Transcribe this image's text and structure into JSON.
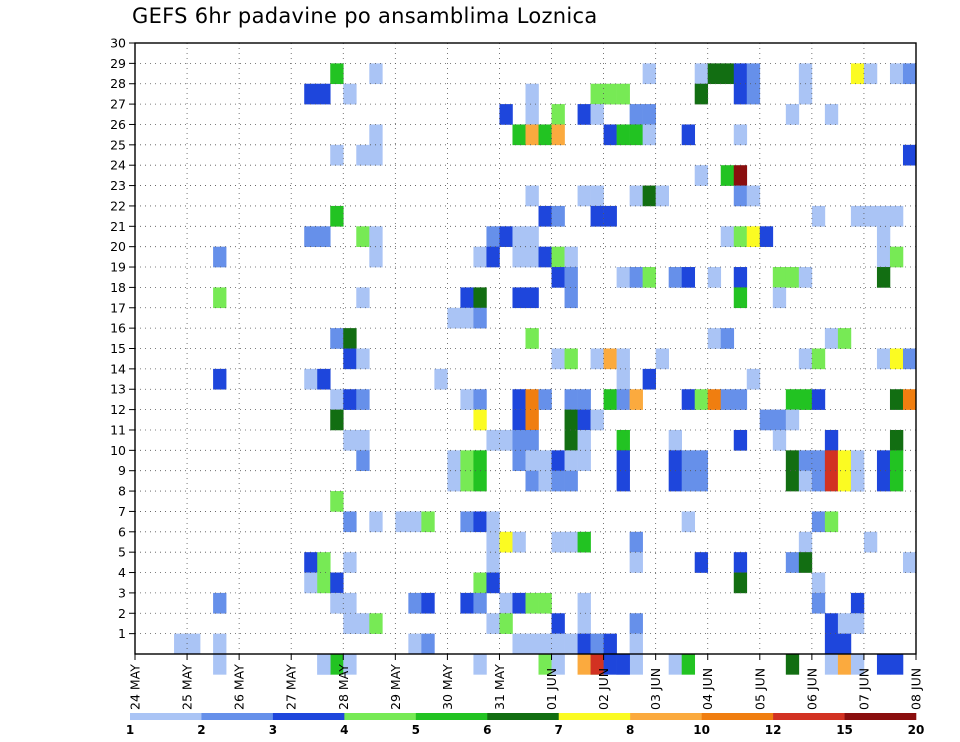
{
  "chart_data": {
    "type": "heatmap",
    "title": "GEFS 6hr padavine po ansamblima Loznica",
    "y_tick_labels": [
      "1",
      "2",
      "3",
      "4",
      "5",
      "6",
      "7",
      "8",
      "9",
      "10",
      "11",
      "12",
      "13",
      "14",
      "15",
      "16",
      "17",
      "18",
      "19",
      "20",
      "21",
      "22",
      "23",
      "24",
      "25",
      "26",
      "27",
      "28",
      "29",
      "30"
    ],
    "ylim": [
      0,
      30
    ],
    "x_tick_labels": [
      "24 MAY",
      "25 MAY",
      "26 MAY",
      "27 MAY",
      "28 MAY",
      "29 MAY",
      "30 MAY",
      "31 MAY",
      "01 JUN",
      "02 JUN",
      "03 JUN",
      "04 JUN",
      "05 JUN",
      "06 JUN",
      "07 JUN",
      "08 JUN"
    ],
    "xlim_steps": [
      0,
      60
    ],
    "grid": true,
    "colorbar": {
      "labels": [
        "1",
        "2",
        "3",
        "4",
        "5",
        "6",
        "7",
        "8",
        "10",
        "12",
        "15",
        "20"
      ],
      "colors": [
        "#aac4f5",
        "#6690ea",
        "#1e46dc",
        "#77ea55",
        "#22c322",
        "#126e12",
        "#fbfb22",
        "#fbaa3e",
        "#f07e10",
        "#d23222",
        "#8a0e0e"
      ]
    },
    "cells": [
      [
        0.5,
        6,
        29
      ],
      [
        2.5,
        3,
        26
      ],
      [
        3.5,
        3,
        26
      ],
      [
        3.5,
        3,
        33
      ],
      [
        15,
        5,
        9
      ],
      [
        16,
        5,
        9
      ],
      [
        17,
        6,
        8
      ],
      [
        22,
        3,
        8
      ],
      [
        24,
        9,
        7
      ],
      [
        27,
        4,
        8
      ],
      [
        31,
        5,
        5
      ],
      [
        36,
        3,
        7
      ],
      [
        37,
        3,
        8
      ],
      [
        41,
        10,
        1
      ],
      [
        42,
        10,
        1
      ],
      [
        45,
        3,
        6
      ],
      [
        46,
        3,
        7
      ],
      [
        45,
        4,
        3
      ],
      [
        45,
        5,
        2
      ],
      [
        46.5,
        1,
        29
      ],
      [
        49,
        3,
        15
      ],
      [
        50,
        3,
        1
      ],
      [
        54,
        2,
        3
      ],
      [
        55,
        3,
        3
      ],
      [
        57,
        4,
        12
      ],
      [
        56,
        1,
        17
      ],
      [
        56,
        2,
        9
      ],
      [
        58,
        2,
        9
      ],
      [
        59,
        2,
        28
      ],
      [
        14,
        3,
        28
      ],
      [
        14,
        4,
        24
      ],
      [
        15,
        3,
        26
      ],
      [
        31,
        5,
        31
      ],
      [
        37,
        2,
        27
      ],
      [
        38,
        2,
        23
      ],
      [
        39,
        1,
        31
      ],
      [
        42,
        2,
        26
      ],
      [
        41,
        2,
        24
      ],
      [
        40,
        5,
        31
      ],
      [
        42,
        8,
        27
      ],
      [
        46,
        3,
        15
      ],
      [
        54,
        1,
        29
      ],
      [
        57,
        4,
        3
      ],
      [
        59,
        4,
        23
      ],
      [
        17,
        6,
        27
      ],
      [
        18,
        9,
        24
      ],
      [
        21,
        3,
        26
      ],
      [
        29,
        1,
        26
      ],
      [
        28,
        1,
        26
      ],
      [
        31,
        10,
        21
      ],
      [
        34,
        6,
        30
      ],
      [
        35,
        8,
        29
      ],
      [
        36,
        6,
        19
      ],
      [
        38,
        7,
        31
      ],
      [
        39,
        5,
        27
      ],
      [
        44,
        2,
        3
      ],
      [
        45,
        5,
        4
      ],
      [
        46,
        5,
        7
      ],
      [
        53,
        1,
        3
      ],
      [
        54,
        1,
        23
      ],
      [
        56,
        1,
        16
      ],
      [
        46,
        2,
        6
      ],
      [
        54,
        3,
        6
      ],
      [
        55,
        10,
        9
      ],
      [
        57,
        3,
        5
      ],
      [
        56,
        10,
        14
      ],
      [
        57,
        10,
        14
      ],
      [
        58,
        10,
        13
      ],
      [
        59,
        8,
        7
      ],
      [
        59,
        5,
        6
      ],
      [
        59,
        4,
        14
      ],
      [
        59,
        9,
        30
      ],
      [
        59,
        12,
        25
      ],
      [
        57,
        4,
        2
      ],
      [
        56,
        4,
        3
      ],
      [
        59,
        2,
        30
      ],
      [
        58.5,
        4,
        27
      ],
      [
        58,
        1,
        27
      ],
      [
        59,
        1,
        27
      ],
      [
        58,
        1,
        28
      ],
      [
        59,
        1,
        28
      ]
    ],
    "cells_a": [
      [
        3,
        1,
        4
      ],
      [
        1.5,
        1,
        1
      ],
      [
        0.5,
        1,
        5
      ],
      [
        1,
        1,
        2
      ],
      [
        3,
        1,
        3
      ],
      [
        13,
        1,
        0.5
      ],
      [
        14.5,
        1,
        0.5
      ],
      [
        14,
        2,
        3
      ],
      [
        17.5,
        3,
        0.5
      ],
      [
        16.5,
        4,
        4
      ],
      [
        37.5,
        2,
        0.5
      ],
      [
        36,
        4,
        1
      ],
      [
        41.5,
        4,
        2
      ],
      [
        50.5,
        4,
        1
      ],
      [
        51,
        4,
        3
      ],
      [
        53,
        5,
        2
      ]
    ]
  }
}
